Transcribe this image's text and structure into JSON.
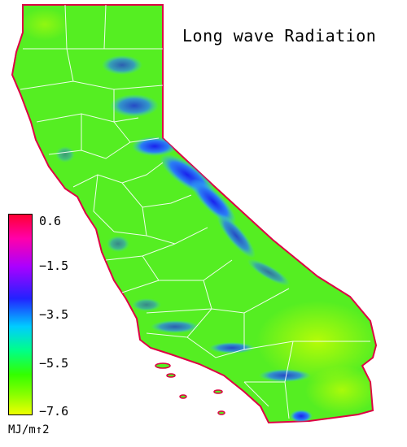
{
  "title": "Long wave Radiation",
  "legend": {
    "ticks": [
      "0.6",
      "−1.5",
      "−3.5",
      "−5.5",
      "−7.6"
    ],
    "unit": "MJ/m↑2",
    "colors": [
      "#ff0033",
      "#ff00aa",
      "#aa00ff",
      "#2222ff",
      "#00ccff",
      "#00ff88",
      "#33ff00",
      "#88ff00",
      "#eeff00"
    ]
  },
  "map": {
    "region": "California",
    "base_color": "#55ee22",
    "boundary_color": "#ffffff",
    "coast_color": "#dd0044"
  }
}
